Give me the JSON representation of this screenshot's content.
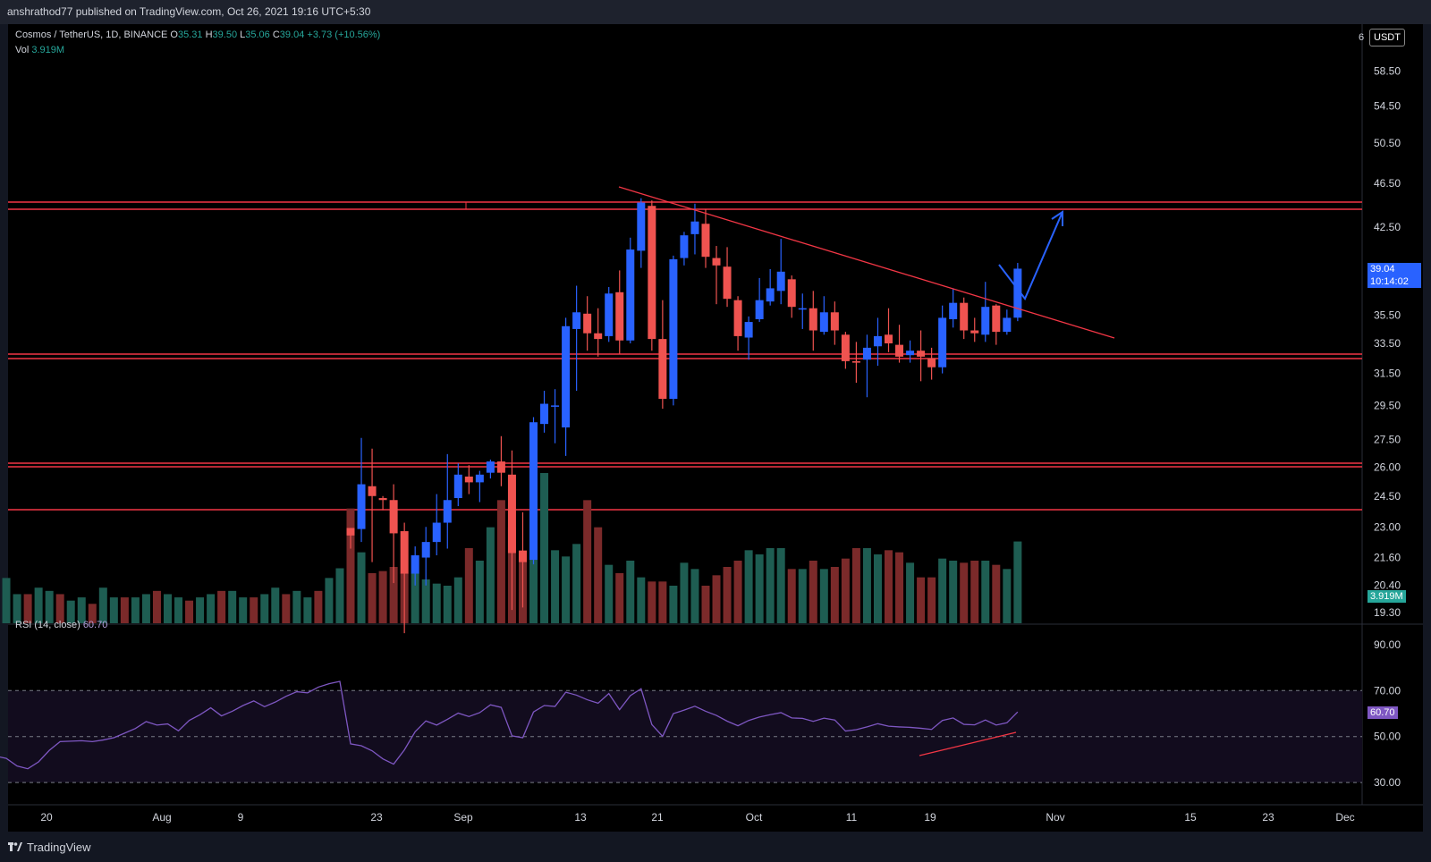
{
  "header": {
    "published_by": "anshrathod77 published on TradingView.com, Oct 26, 2021 19:16 UTC+5:30"
  },
  "legend": {
    "symbol": "Cosmos / TetherUS, 1D, BINANCE",
    "o_label": "O",
    "o": "35.31",
    "h_label": "H",
    "h": "39.50",
    "l_label": "L",
    "l": "35.06",
    "c_label": "C",
    "c": "39.04",
    "change": "+3.73 (+10.56%)",
    "vol_label": "Vol",
    "vol": "3.919M",
    "rsi_label": "RSI (14, close)",
    "rsi": "60.70"
  },
  "price_axis": {
    "unit": "USDT",
    "top_partial": "6",
    "current_price": "39.04",
    "countdown": "10:14:02",
    "vol_tag": "3.919M",
    "rsi_tag": "60.70"
  },
  "footer": {
    "brand": "TradingView"
  },
  "colors": {
    "up": "#2962ff",
    "down": "#ef5350",
    "vol_up": "#1e5d52",
    "vol_down": "#7b2a2a",
    "hline": "#f23645",
    "rsi_line": "#7e57c2",
    "rsi_band": "#120c1e",
    "arrow": "#2962ff"
  },
  "chart_data": {
    "type": "candlestick",
    "log_scale": true,
    "price_ticks": [
      "58.50",
      "54.50",
      "50.50",
      "46.50",
      "42.50",
      "39.04",
      "35.50",
      "33.50",
      "31.50",
      "29.50",
      "27.50",
      "26.00",
      "24.50",
      "23.00",
      "21.60",
      "20.40",
      "19.30"
    ],
    "rsi_ticks": [
      "90.00",
      "70.00",
      "50.00",
      "30.00"
    ],
    "x_tick_labels": [
      "20",
      "Aug",
      "9",
      "23",
      "Sep",
      "13",
      "21",
      "Oct",
      "11",
      "19",
      "Nov",
      "15",
      "23",
      "Dec"
    ],
    "ohlc": [
      [
        22.95,
        22.95,
        22.0,
        22.6
      ],
      [
        22.9,
        27.6,
        22.3,
        25.1
      ],
      [
        25.0,
        27.0,
        21.4,
        24.5
      ],
      [
        24.4,
        24.5,
        23.8,
        24.3
      ],
      [
        24.3,
        25.1,
        20.5,
        22.7
      ],
      [
        22.8,
        23.2,
        18.5,
        20.9
      ],
      [
        20.9,
        22.1,
        20.4,
        21.7
      ],
      [
        21.6,
        23.0,
        20.4,
        22.3
      ],
      [
        22.3,
        24.6,
        21.7,
        23.2
      ],
      [
        23.2,
        26.7,
        22.0,
        24.3
      ],
      [
        24.4,
        26.2,
        24.0,
        25.6
      ],
      [
        25.5,
        26.1,
        24.6,
        25.2
      ],
      [
        25.2,
        25.8,
        24.2,
        25.6
      ],
      [
        25.7,
        26.4,
        25.4,
        26.3
      ],
      [
        26.3,
        27.7,
        25.0,
        25.7
      ],
      [
        25.6,
        26.9,
        19.4,
        21.8
      ],
      [
        21.9,
        23.7,
        19.5,
        21.4
      ],
      [
        21.5,
        28.8,
        21.3,
        28.5
      ],
      [
        28.4,
        30.4,
        27.9,
        29.6
      ],
      [
        29.5,
        30.5,
        27.3,
        29.5
      ],
      [
        28.2,
        35.3,
        26.6,
        34.7
      ],
      [
        34.5,
        37.7,
        30.4,
        35.7
      ],
      [
        35.6,
        36.9,
        33.0,
        34.2
      ],
      [
        34.2,
        36.0,
        32.6,
        33.8
      ],
      [
        34.0,
        37.6,
        33.6,
        37.1
      ],
      [
        37.2,
        38.9,
        32.8,
        33.7
      ],
      [
        33.7,
        41.6,
        33.5,
        40.6
      ],
      [
        40.5,
        45.1,
        39.1,
        44.7
      ],
      [
        44.4,
        44.9,
        33.0,
        33.8
      ],
      [
        33.8,
        36.6,
        29.3,
        29.9
      ],
      [
        29.9,
        40.1,
        29.5,
        39.8
      ],
      [
        39.9,
        42.1,
        39.3,
        41.8
      ],
      [
        41.9,
        44.6,
        40.2,
        43.0
      ],
      [
        42.8,
        44.1,
        39.1,
        40.0
      ],
      [
        39.9,
        40.9,
        36.3,
        39.3
      ],
      [
        39.2,
        40.8,
        36.1,
        36.7
      ],
      [
        36.6,
        36.9,
        33.0,
        34.0
      ],
      [
        33.9,
        35.4,
        32.4,
        35.0
      ],
      [
        35.2,
        38.3,
        35.0,
        36.6
      ],
      [
        36.5,
        39.0,
        36.2,
        37.5
      ],
      [
        37.3,
        41.5,
        36.3,
        38.8
      ],
      [
        38.2,
        38.5,
        35.3,
        36.1
      ],
      [
        36.0,
        37.1,
        34.5,
        36.0
      ],
      [
        36.0,
        37.3,
        33.0,
        34.4
      ],
      [
        34.3,
        36.9,
        34.1,
        35.7
      ],
      [
        35.7,
        36.5,
        33.4,
        34.4
      ],
      [
        34.1,
        34.3,
        31.8,
        32.3
      ],
      [
        32.3,
        33.6,
        30.9,
        32.2
      ],
      [
        32.4,
        34.1,
        30.0,
        33.2
      ],
      [
        33.3,
        35.3,
        32.0,
        34.0
      ],
      [
        34.1,
        36.0,
        32.9,
        33.5
      ],
      [
        33.4,
        34.8,
        32.2,
        32.6
      ],
      [
        32.7,
        33.7,
        32.2,
        33.0
      ],
      [
        33.0,
        34.4,
        31.0,
        32.6
      ],
      [
        32.5,
        33.2,
        31.1,
        31.9
      ],
      [
        31.9,
        36.2,
        31.5,
        35.3
      ],
      [
        35.2,
        37.5,
        34.6,
        36.4
      ],
      [
        36.4,
        36.8,
        33.8,
        34.4
      ],
      [
        34.4,
        35.3,
        33.6,
        34.2
      ],
      [
        34.1,
        38.0,
        33.6,
        36.1
      ],
      [
        36.2,
        36.3,
        33.4,
        34.3
      ],
      [
        34.3,
        35.9,
        34.1,
        35.3
      ],
      [
        35.31,
        39.5,
        35.06,
        39.04
      ]
    ],
    "volume_m": [
      5.5,
      3.4,
      2.4,
      2.5,
      2.7,
      2.4,
      2.4,
      2.1,
      1.9,
      1.8,
      2.2,
      3.6,
      3.0,
      4.6,
      5.9,
      4.6,
      3.5,
      6.9,
      7.2,
      3.5,
      3.2,
      3.8,
      5.9,
      4.6,
      2.8,
      2.4,
      3.0,
      2.2,
      2.0,
      2.0,
      1.8,
      2.9,
      2.6,
      1.8,
      2.3,
      2.7,
      3.0,
      3.5,
      3.3,
      3.6,
      3.6,
      2.6,
      2.6,
      3.0,
      2.6,
      2.7,
      3.1,
      3.6,
      3.6,
      3.3,
      3.5,
      3.4,
      2.9,
      2.2,
      2.2,
      3.1,
      3.0,
      2.9,
      3.0,
      3.0,
      2.8,
      2.6,
      3.919
    ],
    "rsi": [
      46.8,
      46.0,
      43.8,
      40.3,
      38.0,
      44.2,
      52.1,
      56.8,
      55.0,
      57.5,
      60.2,
      58.7,
      60.4,
      63.8,
      62.7,
      50.3,
      49.5,
      60.7,
      63.5,
      63.1,
      69.3,
      68.0,
      66.0,
      64.5,
      68.7,
      61.7,
      67.8,
      70.8,
      55.2,
      50.1,
      60.0,
      61.5,
      63.2,
      61.0,
      59.2,
      56.7,
      54.7,
      57.0,
      58.5,
      59.5,
      60.4,
      58.1,
      57.9,
      56.6,
      58.0,
      57.2,
      52.4,
      53.0,
      54.2,
      55.6,
      54.5,
      54.2,
      54.0,
      53.6,
      53.1,
      57.0,
      58.1,
      55.3,
      55.1,
      57.2,
      55.0,
      56.0,
      60.7
    ]
  }
}
